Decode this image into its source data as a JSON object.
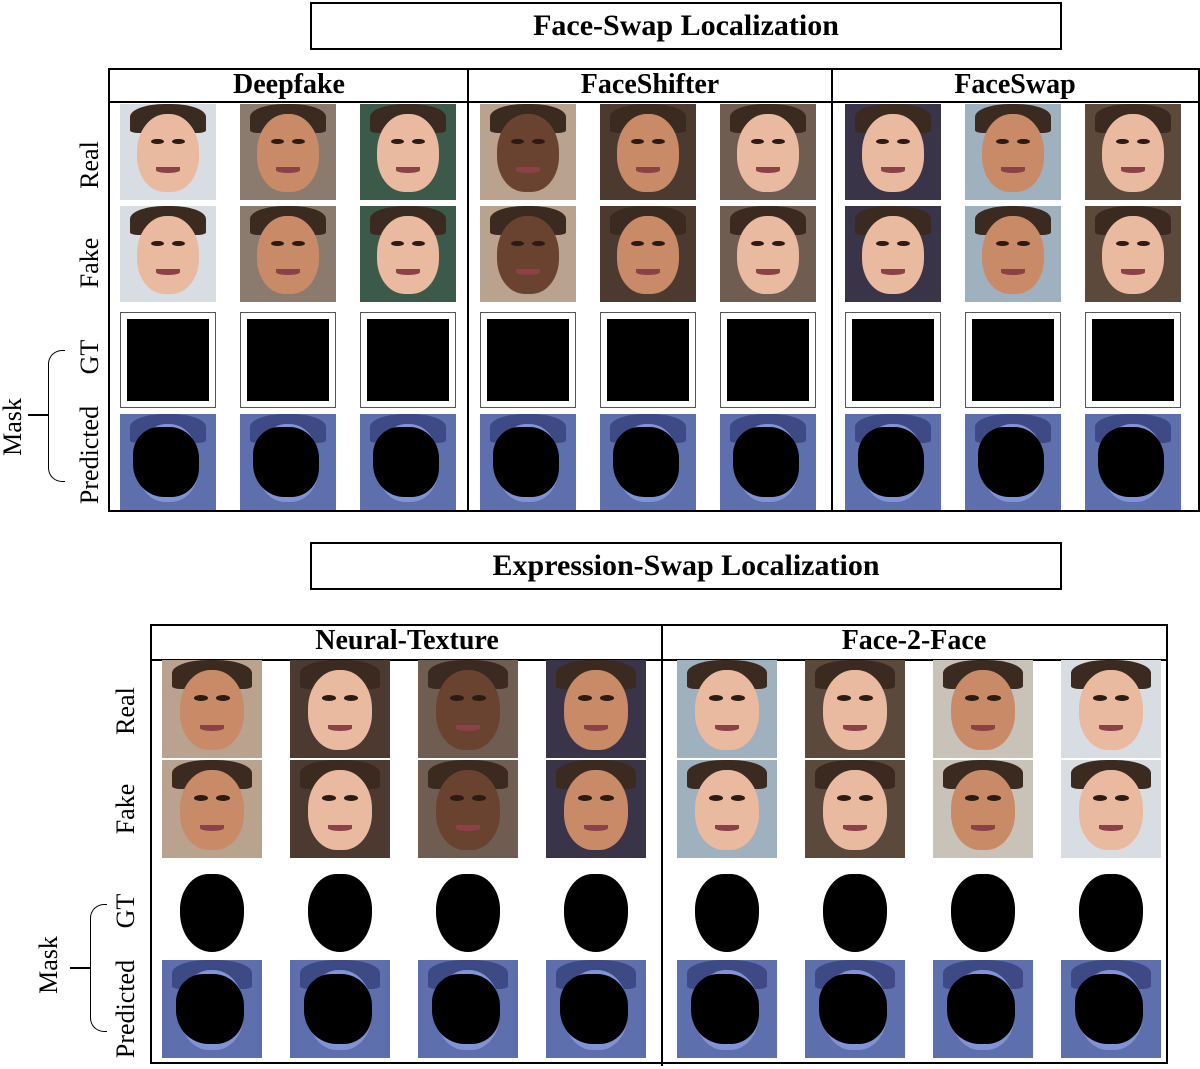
{
  "face_swap": {
    "title": "Face-Swap Localization",
    "columns": [
      "Deepfake",
      "FaceShifter",
      "FaceSwap"
    ],
    "rows": [
      "Real",
      "Fake",
      "GT",
      "Predicted"
    ],
    "mask_label": "Mask"
  },
  "expression_swap": {
    "title": "Expression-Swap Localization",
    "columns": [
      "Neural-Texture",
      "Face-2-Face"
    ],
    "rows": [
      "Real",
      "Fake",
      "GT",
      "Predicted"
    ],
    "mask_label": "Mask"
  },
  "colors": {
    "skin_light": "#e9b9a0",
    "skin_medium": "#c98a68",
    "skin_dark": "#6a4230",
    "predicted_tint": "#7f93d6",
    "mask": "#000000"
  }
}
